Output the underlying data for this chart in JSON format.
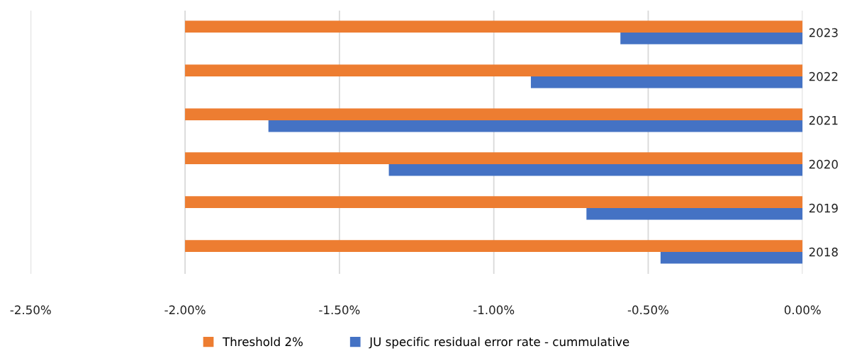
{
  "chart_data": {
    "type": "bar",
    "orientation": "horizontal",
    "categories": [
      "2023",
      "2022",
      "2021",
      "2020",
      "2019",
      "2018"
    ],
    "series": [
      {
        "name": "Threshold 2%",
        "color": "#ed7d31",
        "values": [
          -2.0,
          -2.0,
          -2.0,
          -2.0,
          -2.0,
          -2.0
        ]
      },
      {
        "name": "JU specific residual error rate - cummulative",
        "color": "#4472c4",
        "values": [
          -0.59,
          -0.88,
          -1.73,
          -1.34,
          -0.7,
          -0.46
        ]
      }
    ],
    "xlim": [
      -2.5,
      0
    ],
    "xticks": [
      {
        "value": -2.5,
        "label": "-2.50%"
      },
      {
        "value": -2.0,
        "label": "-2.00%"
      },
      {
        "value": -1.5,
        "label": "-1.50%"
      },
      {
        "value": -1.0,
        "label": "-1.00%"
      },
      {
        "value": -0.5,
        "label": "-0.50%"
      },
      {
        "value": 0,
        "label": "0.00%"
      }
    ],
    "grid": "x",
    "legend": "bottom"
  }
}
